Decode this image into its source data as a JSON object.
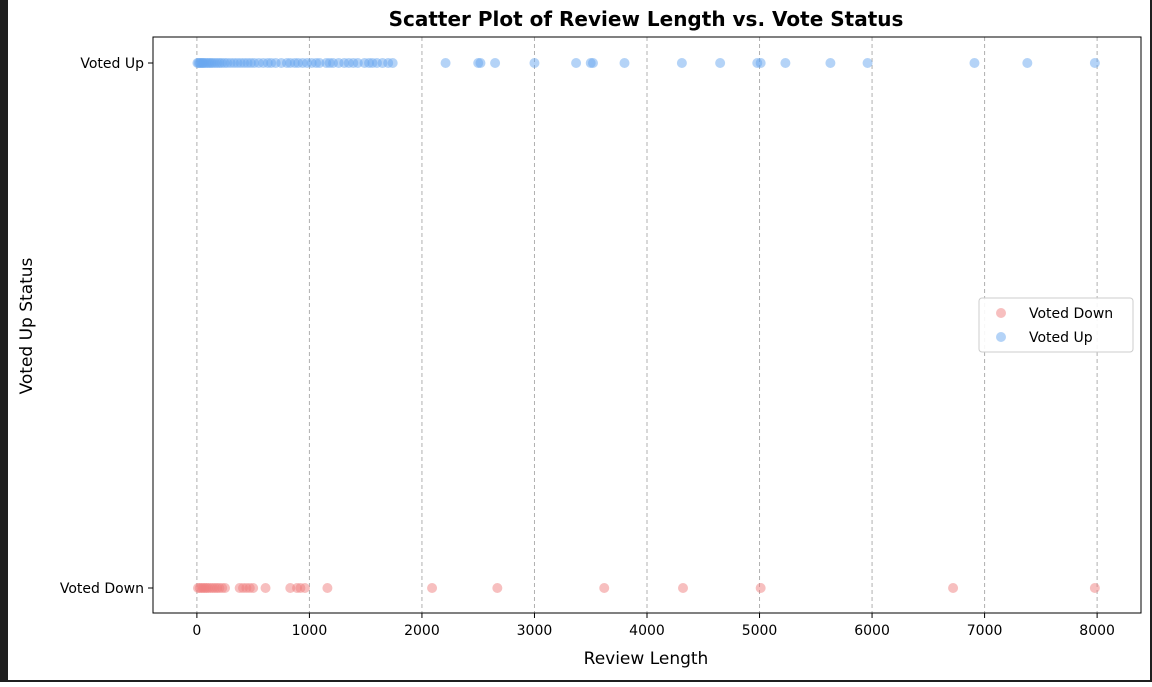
{
  "chart_data": {
    "type": "scatter",
    "title": "Scatter Plot of Review Length vs. Vote Status",
    "xlabel": "Review Length",
    "ylabel": "Voted Up Status",
    "xlim": [
      -390,
      8390
    ],
    "xticks": [
      0,
      1000,
      2000,
      3000,
      4000,
      5000,
      6000,
      7000,
      8000
    ],
    "ycategories": [
      "Voted Down",
      "Voted Up"
    ],
    "grid": "vertical dashed",
    "legend_position": "center-right",
    "series": [
      {
        "name": "Voted Down",
        "y": "Voted Down",
        "color": "#f08080",
        "x": [
          10,
          25,
          40,
          55,
          70,
          85,
          100,
          120,
          140,
          160,
          180,
          200,
          225,
          250,
          380,
          410,
          440,
          470,
          500,
          610,
          830,
          890,
          920,
          960,
          1160,
          2090,
          2670,
          3620,
          4320,
          5010,
          6720,
          7980
        ]
      },
      {
        "name": "Voted Up",
        "y": "Voted Up",
        "color": "#6aa8f0",
        "x": [
          5,
          15,
          25,
          35,
          45,
          55,
          65,
          80,
          95,
          110,
          125,
          140,
          160,
          180,
          200,
          220,
          245,
          270,
          300,
          330,
          360,
          390,
          420,
          450,
          480,
          510,
          550,
          590,
          630,
          660,
          700,
          750,
          800,
          830,
          870,
          900,
          940,
          980,
          1020,
          1060,
          1090,
          1150,
          1180,
          1210,
          1260,
          1310,
          1350,
          1390,
          1430,
          1490,
          1530,
          1560,
          1600,
          1650,
          1700,
          1740,
          2210,
          2500,
          2520,
          2650,
          3000,
          3370,
          3500,
          3520,
          3800,
          4310,
          4650,
          4980,
          5010,
          5230,
          5630,
          5960,
          6910,
          7380,
          7980
        ]
      }
    ]
  }
}
